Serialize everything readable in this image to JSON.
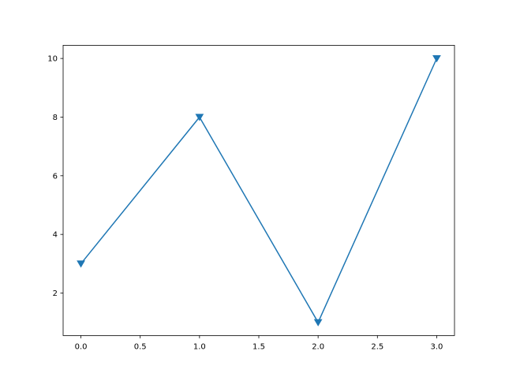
{
  "chart_data": {
    "type": "line",
    "title": "",
    "xlabel": "",
    "ylabel": "",
    "x": [
      0,
      1,
      2,
      3
    ],
    "series": [
      {
        "values": [
          3,
          8,
          1,
          10
        ],
        "color": "#1f77b4",
        "marker": "triangle-down"
      }
    ],
    "xlim": [
      -0.15,
      3.15
    ],
    "ylim": [
      0.55,
      10.45
    ],
    "xticks": [
      0.0,
      0.5,
      1.0,
      1.5,
      2.0,
      2.5,
      3.0
    ],
    "xtick_labels": [
      "0.0",
      "0.5",
      "1.0",
      "1.5",
      "2.0",
      "2.5",
      "3.0"
    ],
    "yticks": [
      2,
      4,
      6,
      8,
      10
    ],
    "ytick_labels": [
      "2",
      "4",
      "6",
      "8",
      "10"
    ],
    "grid": false,
    "legend": "none"
  }
}
